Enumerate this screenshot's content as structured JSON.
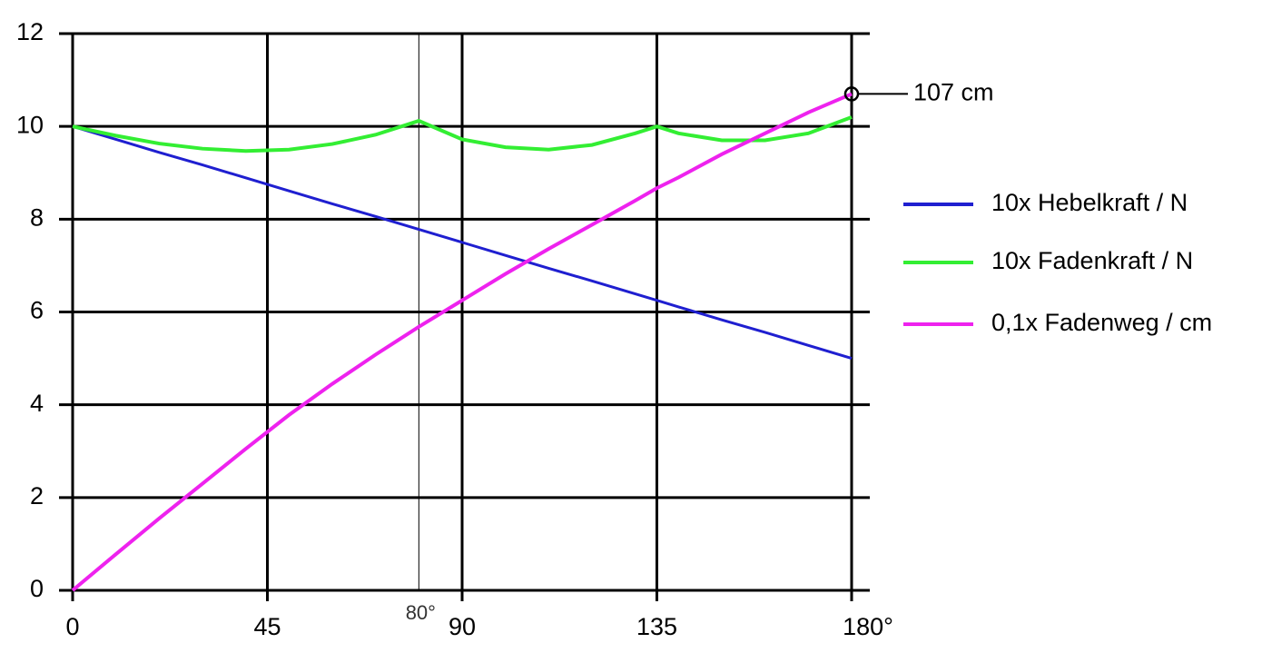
{
  "chart_data": {
    "type": "line",
    "x": [
      0,
      10,
      20,
      30,
      40,
      50,
      60,
      70,
      80,
      90,
      100,
      110,
      120,
      130,
      135,
      140,
      150,
      160,
      170,
      180
    ],
    "series": [
      {
        "name": "10x Hebelkraft / N",
        "color": "#1f1fd0",
        "values": [
          10,
          9.72,
          9.44,
          9.17,
          8.89,
          8.61,
          8.33,
          8.06,
          7.78,
          7.5,
          7.22,
          6.94,
          6.67,
          6.39,
          6.25,
          6.11,
          5.83,
          5.56,
          5.28,
          5
        ]
      },
      {
        "name": "10x Fadenkraft / N",
        "color": "#33ee33",
        "values": [
          10,
          9.8,
          9.63,
          9.52,
          9.47,
          9.5,
          9.62,
          9.82,
          10.12,
          9.72,
          9.55,
          9.5,
          9.6,
          9.85,
          10,
          9.85,
          9.7,
          9.7,
          9.85,
          10.2
        ]
      },
      {
        "name": "0,1x Fadenweg / cm",
        "color": "#ee22ee",
        "values": [
          0,
          0.78,
          1.55,
          2.3,
          3.05,
          3.78,
          4.45,
          5.08,
          5.68,
          6.25,
          6.82,
          7.36,
          7.88,
          8.4,
          8.67,
          8.9,
          9.4,
          9.85,
          10.3,
          10.7
        ]
      }
    ],
    "xlim": [
      0,
      180
    ],
    "ylim": [
      0,
      12
    ],
    "xticks": [
      0,
      45,
      90,
      135,
      {
        "value": 180,
        "label": "180°"
      }
    ],
    "yticks": [
      0,
      2,
      4,
      6,
      8,
      10,
      12
    ],
    "grid": true,
    "marker_line": {
      "value": 80,
      "label": "80°"
    },
    "annotation": {
      "text": "107 cm",
      "x": 180,
      "y": 10.7
    },
    "legend": "right"
  }
}
